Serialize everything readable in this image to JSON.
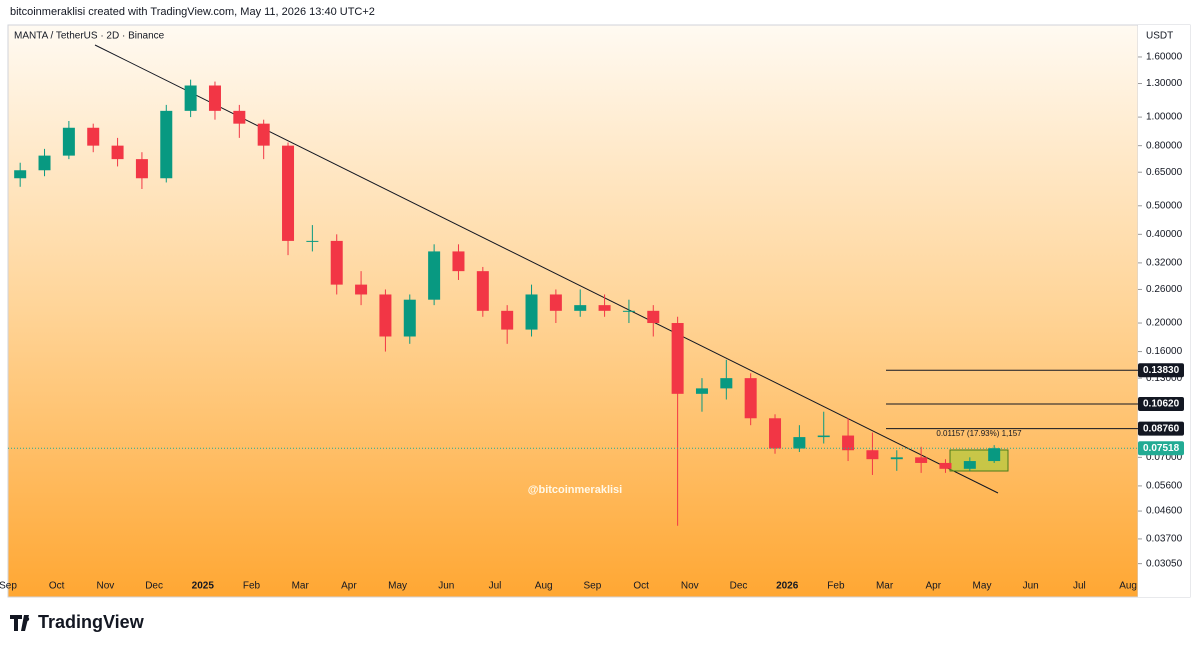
{
  "header": {
    "credit": "bitcoinmeraklisi created with TradingView.com, May 11, 2026 13:40 UTC+2"
  },
  "footer": {
    "brand": "TradingView"
  },
  "chart_data": {
    "type": "candlestick",
    "title": "MANTA / TetherUS · 2D · Binance",
    "y_axis_label": "USDT",
    "watermark": "@bitcoinmeraklisi",
    "log_scale": true,
    "up_color": "#089981",
    "down_color": "#f23645",
    "categories": [
      "Sep",
      null,
      "Oct",
      null,
      "Nov",
      null,
      "Dec",
      null,
      "2025",
      null,
      "Feb",
      null,
      "Mar",
      null,
      "Apr",
      null,
      "May",
      null,
      "Jun",
      null,
      "Jul",
      null,
      "Aug",
      null,
      "Sep",
      null,
      "Oct",
      null,
      "Nov",
      null,
      "Dec",
      null,
      "2026",
      null,
      "Feb",
      null,
      "Mar",
      null,
      "Apr",
      null,
      "May",
      null,
      "Jun",
      null,
      "Jul",
      null,
      "Aug",
      null
    ],
    "open": [
      0.62,
      0.66,
      0.74,
      0.92,
      0.8,
      0.72,
      0.62,
      1.05,
      1.28,
      1.05,
      0.95,
      0.8,
      0.38,
      0.38,
      0.27,
      0.25,
      0.18,
      0.24,
      0.35,
      0.3,
      0.22,
      0.19,
      0.25,
      0.22,
      0.23,
      0.22,
      0.22,
      0.2,
      0.115,
      0.12,
      0.13,
      0.095,
      0.075,
      0.082,
      0.083,
      0.074,
      0.069,
      0.07,
      0.067,
      0.064,
      0.068,
      null,
      null,
      null,
      null,
      null,
      null,
      null
    ],
    "high": [
      0.7,
      0.78,
      0.97,
      0.95,
      0.85,
      0.76,
      1.1,
      1.34,
      1.32,
      1.1,
      0.98,
      0.82,
      0.43,
      0.4,
      0.3,
      0.26,
      0.25,
      0.37,
      0.37,
      0.31,
      0.23,
      0.27,
      0.26,
      0.26,
      0.25,
      0.24,
      0.23,
      0.21,
      0.13,
      0.15,
      0.135,
      0.098,
      0.09,
      0.1,
      0.095,
      0.085,
      0.074,
      0.076,
      0.069,
      0.07,
      0.077,
      null,
      null,
      null,
      null,
      null,
      null,
      null
    ],
    "low": [
      0.58,
      0.63,
      0.72,
      0.76,
      0.68,
      0.57,
      0.6,
      1.0,
      0.98,
      0.85,
      0.72,
      0.34,
      0.35,
      0.25,
      0.23,
      0.16,
      0.17,
      0.23,
      0.28,
      0.21,
      0.17,
      0.18,
      0.2,
      0.21,
      0.21,
      0.2,
      0.18,
      0.041,
      0.1,
      0.11,
      0.09,
      0.072,
      0.073,
      0.078,
      0.068,
      0.061,
      0.063,
      0.062,
      0.062,
      0.063,
      0.067,
      null,
      null,
      null,
      null,
      null,
      null,
      null
    ],
    "close": [
      0.66,
      0.74,
      0.92,
      0.8,
      0.72,
      0.62,
      1.05,
      1.28,
      1.05,
      0.95,
      0.8,
      0.38,
      0.38,
      0.27,
      0.25,
      0.18,
      0.24,
      0.35,
      0.3,
      0.22,
      0.19,
      0.25,
      0.22,
      0.23,
      0.22,
      0.22,
      0.2,
      0.115,
      0.12,
      0.13,
      0.095,
      0.075,
      0.082,
      0.083,
      0.074,
      0.069,
      0.07,
      0.067,
      0.064,
      0.068,
      0.0752,
      null,
      null,
      null,
      null,
      null,
      null,
      null
    ],
    "ylim": [
      0.0235,
      1.716
    ],
    "yticks": [
      {
        "value": 1.6,
        "label": "1.60000"
      },
      {
        "value": 1.3,
        "label": "1.30000"
      },
      {
        "value": 1.0,
        "label": "1.00000"
      },
      {
        "value": 0.8,
        "label": "0.80000"
      },
      {
        "value": 0.65,
        "label": "0.65000"
      },
      {
        "value": 0.5,
        "label": "0.50000"
      },
      {
        "value": 0.4,
        "label": "0.40000"
      },
      {
        "value": 0.32,
        "label": "0.32000"
      },
      {
        "value": 0.26,
        "label": "0.26000"
      },
      {
        "value": 0.2,
        "label": "0.20000"
      },
      {
        "value": 0.16,
        "label": "0.16000"
      },
      {
        "value": 0.13,
        "label": "0.13000"
      },
      {
        "value": 0.07,
        "label": "0.07000"
      },
      {
        "value": 0.056,
        "label": "0.05600"
      },
      {
        "value": 0.046,
        "label": "0.04600"
      },
      {
        "value": 0.037,
        "label": "0.03700"
      },
      {
        "value": 0.0305,
        "label": "0.03050"
      }
    ],
    "price_lines": [
      {
        "value": 0.1383,
        "label": "0.13830"
      },
      {
        "value": 0.1062,
        "label": "0.10620"
      },
      {
        "value": 0.0876,
        "label": "0.08760"
      }
    ],
    "last_price": {
      "value": 0.07518,
      "label": "0.07518",
      "color": "#22ab94"
    },
    "measure_label": "0.01157 (17.93%) 1,157"
  }
}
